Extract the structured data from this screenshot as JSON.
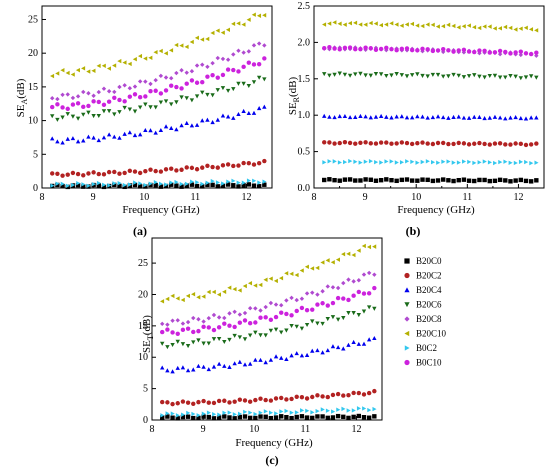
{
  "chart_data": [
    {
      "type": "scatter",
      "panel_label": "(a)",
      "xlabel": "Frequency (GHz)",
      "ylabel_main": "SE",
      "ylabel_sub": "A",
      "ylabel_unit": "(dB)",
      "xlim": [
        8.0,
        12.5
      ],
      "ylim": [
        0,
        27
      ],
      "xticks": [
        8,
        9,
        10,
        11,
        12
      ],
      "yticks": [
        0,
        5,
        10,
        15,
        20,
        25
      ],
      "series": [
        {
          "id": "B20C0",
          "start": 0.3,
          "end": 0.4,
          "wave": 0.15
        },
        {
          "id": "B20C2",
          "start": 2.0,
          "end": 3.8,
          "wave": 0.2
        },
        {
          "id": "B20C4",
          "start": 7.0,
          "end": 11.8,
          "wave": 0.35
        },
        {
          "id": "B20C6",
          "start": 10.5,
          "end": 16.2,
          "wave": 0.4
        },
        {
          "id": "B20C8",
          "start": 13.5,
          "end": 21.5,
          "wave": 0.4
        },
        {
          "id": "B20C10",
          "start": 17.0,
          "end": 26.0,
          "wave": 0.4
        },
        {
          "id": "B0C2",
          "start": 0.5,
          "end": 1.0,
          "wave": 0.2
        },
        {
          "id": "B0C10",
          "start": 12.0,
          "end": 19.0,
          "wave": 0.4
        }
      ]
    },
    {
      "type": "scatter",
      "panel_label": "(b)",
      "xlabel": "Frequency (GHz)",
      "ylabel_main": "SE",
      "ylabel_sub": "R",
      "ylabel_unit": "(dB)",
      "xlim": [
        8.0,
        12.5
      ],
      "ylim": [
        0,
        2.5
      ],
      "xticks": [
        8,
        9,
        10,
        11,
        12
      ],
      "yticks": [
        0.0,
        0.5,
        1.0,
        1.5,
        2.0,
        2.5
      ],
      "tick_decimals": 1,
      "series": [
        {
          "id": "B20C0",
          "start": 0.11,
          "end": 0.1,
          "wave": 0.01
        },
        {
          "id": "B20C2",
          "start": 0.62,
          "end": 0.6,
          "wave": 0.01
        },
        {
          "id": "B20C4",
          "start": 0.98,
          "end": 0.96,
          "wave": 0.01
        },
        {
          "id": "B20C6",
          "start": 1.56,
          "end": 1.52,
          "wave": 0.015
        },
        {
          "id": "B20C8",
          "start": 1.92,
          "end": 1.83,
          "wave": 0.015
        },
        {
          "id": "B20C10",
          "start": 2.26,
          "end": 2.18,
          "wave": 0.015
        },
        {
          "id": "B0C2",
          "start": 0.36,
          "end": 0.35,
          "wave": 0.01
        },
        {
          "id": "B0C10",
          "start": 1.92,
          "end": 1.85,
          "wave": 0.015
        }
      ]
    },
    {
      "type": "scatter",
      "panel_label": "(c)",
      "xlabel": "Frequency (GHz)",
      "ylabel_main": "SE",
      "ylabel_sub": "T",
      "ylabel_unit": "(dB)",
      "xlim": [
        8.0,
        12.5
      ],
      "ylim": [
        0,
        29
      ],
      "xticks": [
        8,
        9,
        10,
        11,
        12
      ],
      "yticks": [
        0,
        5,
        10,
        15,
        20,
        25
      ],
      "series": [
        {
          "id": "B20C0",
          "start": 0.4,
          "end": 0.5,
          "wave": 0.15
        },
        {
          "id": "B20C2",
          "start": 2.7,
          "end": 4.4,
          "wave": 0.2
        },
        {
          "id": "B20C4",
          "start": 8.0,
          "end": 12.8,
          "wave": 0.35
        },
        {
          "id": "B20C6",
          "start": 12.0,
          "end": 17.8,
          "wave": 0.4
        },
        {
          "id": "B20C8",
          "start": 15.5,
          "end": 23.5,
          "wave": 0.4
        },
        {
          "id": "B20C10",
          "start": 19.3,
          "end": 28.0,
          "wave": 0.4
        },
        {
          "id": "B0C2",
          "start": 0.9,
          "end": 1.8,
          "wave": 0.2
        },
        {
          "id": "B0C10",
          "start": 14.0,
          "end": 20.8,
          "wave": 0.4
        }
      ]
    }
  ],
  "legend": {
    "placement": "right-of-panel-c",
    "entries": [
      {
        "id": "B20C0",
        "label": "B20C0",
        "color": "#000000",
        "marker": "square"
      },
      {
        "id": "B20C2",
        "label": "B20C2",
        "color": "#b22222",
        "marker": "circle"
      },
      {
        "id": "B20C4",
        "label": "B20C4",
        "color": "#0000ee",
        "marker": "triangle-up"
      },
      {
        "id": "B20C6",
        "label": "B20C6",
        "color": "#1a6b1a",
        "marker": "triangle-down"
      },
      {
        "id": "B20C8",
        "label": "B20C8",
        "color": "#b04ad0",
        "marker": "diamond"
      },
      {
        "id": "B20C10",
        "label": "B20C10",
        "color": "#b4b000",
        "marker": "triangle-left"
      },
      {
        "id": "B0C2",
        "label": "B0C2",
        "color": "#33c8ee",
        "marker": "triangle-right"
      },
      {
        "id": "B0C10",
        "label": "B0C10",
        "color": "#cc22dd",
        "marker": "circle"
      }
    ]
  }
}
